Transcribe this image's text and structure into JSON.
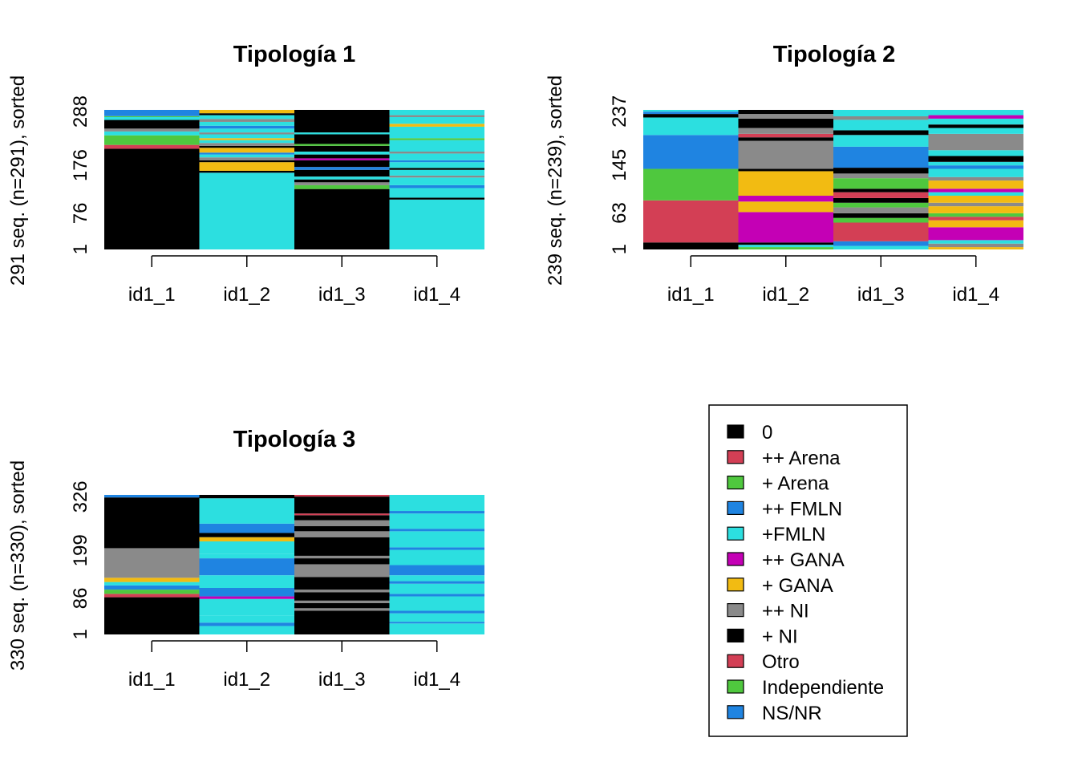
{
  "states": [
    "0",
    "++ Arena",
    "+ Arena",
    "++ FMLN",
    "+FMLN",
    "++ GANA",
    "+ GANA",
    "++ NI",
    "+ NI",
    "Otro",
    "Independiente",
    "NS/NR"
  ],
  "colors": {
    "0": "#000000",
    "++ Arena": "#d33f55",
    "+ Arena": "#4fc83e",
    "++ FMLN": "#1f84e1",
    "+FMLN": "#2cdfe0",
    "++ GANA": "#c400b5",
    "+ GANA": "#f2bb12",
    "++ NI": "#8a8a8a",
    "+ NI": "#000000",
    "Otro": "#d33f55",
    "Independiente": "#4fc83e",
    "NS/NR": "#1f84e1"
  },
  "chart_data": [
    {
      "type": "sequence_index",
      "title": "Tipología 1",
      "ylabel": "291 seq. (n=291), sorted",
      "n": 291,
      "yticks": [
        1,
        76,
        176,
        288
      ],
      "columns": [
        "id1_1",
        "id1_2",
        "id1_3",
        "id1_4"
      ],
      "blocks": [
        [
          [
            0,
            210,
            "0"
          ],
          [
            210,
            218,
            "++ Arena"
          ],
          [
            218,
            238,
            "+ Arena"
          ],
          [
            238,
            246,
            "+FMLN"
          ],
          [
            246,
            252,
            "++ NI"
          ],
          [
            252,
            270,
            "0"
          ],
          [
            270,
            276,
            "+FMLN"
          ],
          [
            276,
            278,
            "+ Arena"
          ],
          [
            278,
            291,
            "++ FMLN"
          ]
        ],
        [
          [
            0,
            160,
            "+FMLN"
          ],
          [
            160,
            164,
            "0"
          ],
          [
            164,
            182,
            "+ GANA"
          ],
          [
            182,
            186,
            "0"
          ],
          [
            186,
            192,
            "++ NI"
          ],
          [
            192,
            198,
            "+FMLN"
          ],
          [
            198,
            202,
            "++ FMLN"
          ],
          [
            202,
            212,
            "+ GANA"
          ],
          [
            212,
            216,
            "0"
          ],
          [
            216,
            222,
            "++ NI"
          ],
          [
            222,
            228,
            "+FMLN"
          ],
          [
            228,
            232,
            "+ GANA"
          ],
          [
            232,
            240,
            "+FMLN"
          ],
          [
            240,
            244,
            "++ NI"
          ],
          [
            244,
            252,
            "+FMLN"
          ],
          [
            252,
            258,
            "++ FMLN"
          ],
          [
            258,
            266,
            "+FMLN"
          ],
          [
            266,
            272,
            "++ NI"
          ],
          [
            272,
            280,
            "+FMLN"
          ],
          [
            280,
            284,
            "0"
          ],
          [
            284,
            291,
            "+ GANA"
          ]
        ],
        [
          [
            0,
            126,
            "0"
          ],
          [
            126,
            134,
            "+ Arena"
          ],
          [
            134,
            140,
            "++ NI"
          ],
          [
            140,
            146,
            "0"
          ],
          [
            146,
            152,
            "+FMLN"
          ],
          [
            152,
            166,
            "0"
          ],
          [
            166,
            172,
            "++ FMLN"
          ],
          [
            172,
            186,
            "0"
          ],
          [
            186,
            190,
            "++ GANA"
          ],
          [
            190,
            198,
            "0"
          ],
          [
            198,
            204,
            "+FMLN"
          ],
          [
            204,
            216,
            "0"
          ],
          [
            216,
            220,
            "+ Arena"
          ],
          [
            220,
            240,
            "0"
          ],
          [
            240,
            244,
            "+FMLN"
          ],
          [
            244,
            291,
            "0"
          ]
        ],
        [
          [
            0,
            104,
            "+FMLN"
          ],
          [
            104,
            108,
            "0"
          ],
          [
            108,
            128,
            "+FMLN"
          ],
          [
            128,
            134,
            "++ FMLN"
          ],
          [
            134,
            150,
            "+FMLN"
          ],
          [
            150,
            154,
            "++ NI"
          ],
          [
            154,
            166,
            "+FMLN"
          ],
          [
            166,
            170,
            "0"
          ],
          [
            170,
            182,
            "+FMLN"
          ],
          [
            182,
            186,
            "++ FMLN"
          ],
          [
            186,
            200,
            "+FMLN"
          ],
          [
            200,
            204,
            "++ NI"
          ],
          [
            204,
            228,
            "+FMLN"
          ],
          [
            228,
            232,
            "+ Arena"
          ],
          [
            232,
            256,
            "+FMLN"
          ],
          [
            256,
            262,
            "+ GANA"
          ],
          [
            262,
            276,
            "+FMLN"
          ],
          [
            276,
            280,
            "++ NI"
          ],
          [
            280,
            291,
            "+FMLN"
          ]
        ]
      ]
    },
    {
      "type": "sequence_index",
      "title": "Tipología 2",
      "ylabel": "239 seq. (n=239), sorted",
      "n": 239,
      "yticks": [
        1,
        63,
        145,
        237
      ],
      "columns": [
        "id1_1",
        "id1_2",
        "id1_3",
        "id1_4"
      ],
      "blocks": [
        [
          [
            0,
            12,
            "0"
          ],
          [
            12,
            84,
            "++ Arena"
          ],
          [
            84,
            138,
            "+ Arena"
          ],
          [
            138,
            196,
            "++ FMLN"
          ],
          [
            196,
            226,
            "+FMLN"
          ],
          [
            226,
            232,
            "0"
          ],
          [
            232,
            236,
            "++ FMLN"
          ],
          [
            236,
            239,
            "+FMLN"
          ]
        ],
        [
          [
            0,
            4,
            "+ Arena"
          ],
          [
            4,
            8,
            "+FMLN"
          ],
          [
            8,
            12,
            "0"
          ],
          [
            12,
            64,
            "++ GANA"
          ],
          [
            64,
            82,
            "+ GANA"
          ],
          [
            82,
            92,
            "++ GANA"
          ],
          [
            92,
            134,
            "+ GANA"
          ],
          [
            134,
            138,
            "0"
          ],
          [
            138,
            186,
            "++ NI"
          ],
          [
            186,
            192,
            "0"
          ],
          [
            192,
            198,
            "++ Arena"
          ],
          [
            198,
            208,
            "++ NI"
          ],
          [
            208,
            224,
            "0"
          ],
          [
            224,
            232,
            "++ NI"
          ],
          [
            232,
            239,
            "0"
          ]
        ],
        [
          [
            0,
            6,
            "+FMLN"
          ],
          [
            6,
            14,
            "++ FMLN"
          ],
          [
            14,
            46,
            "++ Arena"
          ],
          [
            46,
            54,
            "+ Arena"
          ],
          [
            54,
            62,
            "0"
          ],
          [
            62,
            72,
            "++ NI"
          ],
          [
            72,
            80,
            "+ Arena"
          ],
          [
            80,
            88,
            "0"
          ],
          [
            88,
            98,
            "++ Arena"
          ],
          [
            98,
            104,
            "0"
          ],
          [
            104,
            122,
            "+ Arena"
          ],
          [
            122,
            130,
            "++ NI"
          ],
          [
            130,
            140,
            "0"
          ],
          [
            140,
            176,
            "++ FMLN"
          ],
          [
            176,
            196,
            "+FMLN"
          ],
          [
            196,
            204,
            "0"
          ],
          [
            204,
            222,
            "+FMLN"
          ],
          [
            222,
            228,
            "++ NI"
          ],
          [
            228,
            239,
            "+FMLN"
          ]
        ],
        [
          [
            0,
            4,
            "+ GANA"
          ],
          [
            4,
            10,
            "++ NI"
          ],
          [
            10,
            16,
            "+FMLN"
          ],
          [
            16,
            38,
            "++ GANA"
          ],
          [
            38,
            50,
            "+ GANA"
          ],
          [
            50,
            56,
            "++ Arena"
          ],
          [
            56,
            62,
            "+ Arena"
          ],
          [
            62,
            74,
            "+ GANA"
          ],
          [
            74,
            80,
            "++ NI"
          ],
          [
            80,
            92,
            "+ GANA"
          ],
          [
            92,
            98,
            "+FMLN"
          ],
          [
            98,
            104,
            "++ GANA"
          ],
          [
            104,
            118,
            "+ GANA"
          ],
          [
            118,
            124,
            "++ NI"
          ],
          [
            124,
            138,
            "+FMLN"
          ],
          [
            138,
            144,
            "++ FMLN"
          ],
          [
            144,
            150,
            "+FMLN"
          ],
          [
            150,
            160,
            "0"
          ],
          [
            160,
            170,
            "+FMLN"
          ],
          [
            170,
            198,
            "++ NI"
          ],
          [
            198,
            208,
            "+FMLN"
          ],
          [
            208,
            214,
            "0"
          ],
          [
            214,
            224,
            "+FMLN"
          ],
          [
            224,
            230,
            "++ GANA"
          ],
          [
            230,
            239,
            "+FMLN"
          ]
        ]
      ]
    },
    {
      "type": "sequence_index",
      "title": "Tipología 3",
      "ylabel": "330 seq. (n=330), sorted",
      "n": 330,
      "yticks": [
        1,
        86,
        199,
        326
      ],
      "columns": [
        "id1_1",
        "id1_2",
        "id1_3",
        "id1_4"
      ],
      "blocks": [
        [
          [
            0,
            88,
            "0"
          ],
          [
            88,
            96,
            "++ Arena"
          ],
          [
            96,
            106,
            "+ Arena"
          ],
          [
            106,
            116,
            "++ FMLN"
          ],
          [
            116,
            124,
            "+FMLN"
          ],
          [
            124,
            134,
            "+ GANA"
          ],
          [
            134,
            204,
            "++ NI"
          ],
          [
            204,
            324,
            "0"
          ],
          [
            324,
            330,
            "++ FMLN"
          ]
        ],
        [
          [
            0,
            20,
            "+FMLN"
          ],
          [
            20,
            28,
            "++ FMLN"
          ],
          [
            28,
            44,
            "+FMLN"
          ],
          [
            44,
            84,
            "+FMLN"
          ],
          [
            84,
            90,
            "++ GANA"
          ],
          [
            90,
            110,
            "++ FMLN"
          ],
          [
            110,
            140,
            "+FMLN"
          ],
          [
            140,
            180,
            "++ FMLN"
          ],
          [
            180,
            190,
            "+FMLN"
          ],
          [
            190,
            220,
            "+FMLN"
          ],
          [
            220,
            230,
            "+ GANA"
          ],
          [
            230,
            240,
            "0"
          ],
          [
            240,
            262,
            "++ FMLN"
          ],
          [
            262,
            322,
            "+FMLN"
          ],
          [
            322,
            330,
            "0"
          ]
        ],
        [
          [
            0,
            56,
            "0"
          ],
          [
            56,
            62,
            "++ NI"
          ],
          [
            62,
            74,
            "0"
          ],
          [
            74,
            80,
            "++ NI"
          ],
          [
            80,
            100,
            "0"
          ],
          [
            100,
            106,
            "++ NI"
          ],
          [
            106,
            136,
            "0"
          ],
          [
            136,
            166,
            "++ NI"
          ],
          [
            166,
            180,
            "0"
          ],
          [
            180,
            186,
            "++ NI"
          ],
          [
            186,
            230,
            "0"
          ],
          [
            230,
            244,
            "++ NI"
          ],
          [
            244,
            256,
            "0"
          ],
          [
            256,
            270,
            "++ NI"
          ],
          [
            270,
            282,
            "0"
          ],
          [
            282,
            286,
            "++ Arena"
          ],
          [
            286,
            326,
            "0"
          ],
          [
            326,
            330,
            "++ Arena"
          ]
        ],
        [
          [
            0,
            26,
            "+FMLN"
          ],
          [
            26,
            30,
            "++ FMLN"
          ],
          [
            30,
            50,
            "+FMLN"
          ],
          [
            50,
            56,
            "++ FMLN"
          ],
          [
            56,
            90,
            "+FMLN"
          ],
          [
            90,
            96,
            "++ FMLN"
          ],
          [
            96,
            120,
            "+FMLN"
          ],
          [
            120,
            126,
            "++ FMLN"
          ],
          [
            126,
            140,
            "+FMLN"
          ],
          [
            140,
            164,
            "++ FMLN"
          ],
          [
            164,
            200,
            "+FMLN"
          ],
          [
            200,
            206,
            "++ FMLN"
          ],
          [
            206,
            244,
            "+FMLN"
          ],
          [
            244,
            250,
            "++ FMLN"
          ],
          [
            250,
            286,
            "+FMLN"
          ],
          [
            286,
            292,
            "++ FMLN"
          ],
          [
            292,
            330,
            "+FMLN"
          ]
        ]
      ]
    }
  ]
}
